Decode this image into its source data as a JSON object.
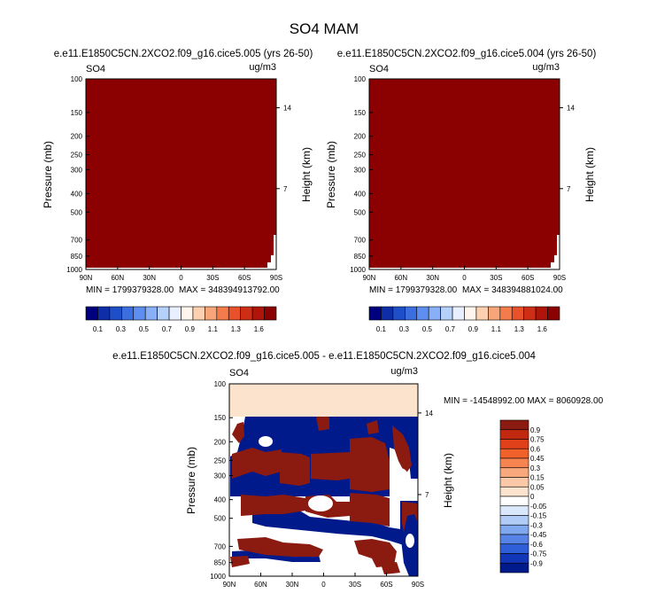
{
  "figure": {
    "title": "SO4 MAM"
  },
  "colors": {
    "saturated_fill": "#8b0000",
    "diff_band_fill": "#fbe3ce",
    "diff_positive": "#8b1a10",
    "diff_negative": "#001a8c"
  },
  "chart_data": [
    {
      "type": "heatmap",
      "panel_title": "e.e11.E1850C5CN.2XCO2.f09_g16.cice5.005 (yrs 26-50)",
      "field_label": "SO4",
      "units": "ug/m3",
      "xlabel": "",
      "ylabel": "Pressure (mb)",
      "ylabel_right": "Height (km)",
      "x_ticks": [
        "90N",
        "60N",
        "30N",
        "0",
        "30S",
        "60S",
        "90S"
      ],
      "y_ticks": [
        100,
        150,
        200,
        250,
        300,
        400,
        500,
        700,
        850,
        1000
      ],
      "height_ticks": [
        14,
        7
      ],
      "ylim": [
        100,
        1000
      ],
      "stats": {
        "min": "MIN = 1799379328.00",
        "max": "MAX = 348394913792.00"
      },
      "field_summary": "all values exceed top contour level (1.6)",
      "colorbar": {
        "orientation": "horizontal",
        "levels": [
          0.1,
          0.2,
          0.3,
          0.4,
          0.5,
          0.6,
          0.7,
          0.8,
          0.9,
          1.0,
          1.1,
          1.2,
          1.3,
          1.4,
          1.5,
          1.6
        ],
        "labels": [
          "0.1",
          "0.3",
          "0.5",
          "0.7",
          "0.9",
          "1.1",
          "1.3",
          "1.6"
        ],
        "colors": [
          "#00007f",
          "#0d2ea8",
          "#1f4fc8",
          "#3b6fe0",
          "#5d8ef0",
          "#88aff7",
          "#b5d0fb",
          "#e8f0ff",
          "#fff5ec",
          "#fcd0b0",
          "#f9a57a",
          "#f47b4c",
          "#e8512a",
          "#cf2e16",
          "#b0150a",
          "#8b0000"
        ]
      }
    },
    {
      "type": "heatmap",
      "panel_title": "e.e11.E1850C5CN.2XCO2.f09_g16.cice5.004 (yrs 26-50)",
      "field_label": "SO4",
      "units": "ug/m3",
      "xlabel": "",
      "ylabel": "Pressure (mb)",
      "ylabel_right": "Height (km)",
      "x_ticks": [
        "90N",
        "60N",
        "30N",
        "0",
        "30S",
        "60S",
        "90S"
      ],
      "y_ticks": [
        100,
        150,
        200,
        250,
        300,
        400,
        500,
        700,
        850,
        1000
      ],
      "height_ticks": [
        14,
        7
      ],
      "ylim": [
        100,
        1000
      ],
      "stats": {
        "min": "MIN = 1799379328.00",
        "max": "MAX = 348394881024.00"
      },
      "field_summary": "all values exceed top contour level (1.6)",
      "colorbar": {
        "orientation": "horizontal",
        "levels": [
          0.1,
          0.2,
          0.3,
          0.4,
          0.5,
          0.6,
          0.7,
          0.8,
          0.9,
          1.0,
          1.1,
          1.2,
          1.3,
          1.4,
          1.5,
          1.6
        ],
        "labels": [
          "0.1",
          "0.3",
          "0.5",
          "0.7",
          "0.9",
          "1.1",
          "1.3",
          "1.6"
        ],
        "colors": [
          "#00007f",
          "#0d2ea8",
          "#1f4fc8",
          "#3b6fe0",
          "#5d8ef0",
          "#88aff7",
          "#b5d0fb",
          "#e8f0ff",
          "#fff5ec",
          "#fcd0b0",
          "#f9a57a",
          "#f47b4c",
          "#e8512a",
          "#cf2e16",
          "#b0150a",
          "#8b0000"
        ]
      }
    },
    {
      "type": "heatmap",
      "panel_title": "e.e11.E1850C5CN.2XCO2.f09_g16.cice5.005 - e.e11.E1850C5CN.2XCO2.f09_g16.cice5.004",
      "field_label": "SO4",
      "units": "ug/m3",
      "xlabel": "",
      "ylabel": "Pressure (mb)",
      "ylabel_right": "Height (km)",
      "x_ticks": [
        "90N",
        "60N",
        "30N",
        "0",
        "30S",
        "60S",
        "90S"
      ],
      "y_ticks": [
        100,
        150,
        200,
        250,
        300,
        400,
        500,
        700,
        850,
        1000
      ],
      "height_ticks": [
        14,
        7
      ],
      "ylim": [
        100,
        1000
      ],
      "stats": {
        "min": "MIN = -14548992.00",
        "max": "MAX = 8060928.00"
      },
      "stats_line": "MIN = -14548992.00  MAX = 8060928.00",
      "field_summary": "above 150 mb uniform 0.05 to 0.15 band; below 150 mb alternating values above 0.9 and below -0.9 with scattered near-zero regions",
      "colorbar": {
        "orientation": "vertical",
        "labels": [
          "0.9",
          "0.75",
          "0.6",
          "0.45",
          "0.3",
          "0.15",
          "0.05",
          "0",
          "-0.05",
          "-0.15",
          "-0.3",
          "-0.45",
          "-0.6",
          "-0.75",
          "-0.9"
        ],
        "colors": [
          "#8b1a10",
          "#c0280f",
          "#e0401a",
          "#f0612c",
          "#f58450",
          "#f8a87c",
          "#fbc9a7",
          "#fbe3ce",
          "#ffffff",
          "#d9e8fb",
          "#b0cbf5",
          "#80a8ee",
          "#5584e6",
          "#2e5fd9",
          "#1236b8",
          "#001a8c"
        ]
      }
    }
  ]
}
